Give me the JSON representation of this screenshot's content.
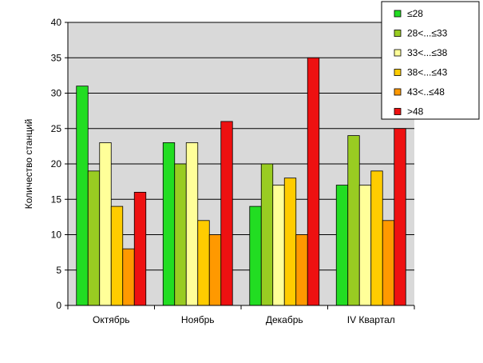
{
  "chart_data": {
    "type": "bar",
    "ylabel": "Количество  станций",
    "ylim": [
      0,
      40
    ],
    "yticks": [
      0,
      5,
      10,
      15,
      20,
      25,
      30,
      35,
      40
    ],
    "grid": true,
    "legend_position": "top-right",
    "plot_background": "#d9d9d9",
    "categories": [
      "Октябрь",
      "Ноябрь",
      "Декабрь",
      "IV Квартал"
    ],
    "series": [
      {
        "name": "≤28",
        "color": "#22dd22",
        "values": [
          31,
          23,
          14,
          17
        ]
      },
      {
        "name": "28<...≤33",
        "color": "#99cc22",
        "values": [
          19,
          20,
          20,
          24
        ]
      },
      {
        "name": "33<...≤38",
        "color": "#ffff99",
        "values": [
          23,
          23,
          17,
          17
        ]
      },
      {
        "name": "38<...≤43",
        "color": "#ffcc00",
        "values": [
          14,
          12,
          18,
          19
        ]
      },
      {
        "name": "43<..≤48",
        "color": "#ff9900",
        "values": [
          8,
          10,
          10,
          12
        ]
      },
      {
        "name": ">48",
        "color": "#ee1111",
        "values": [
          16,
          26,
          35,
          25
        ]
      }
    ]
  }
}
